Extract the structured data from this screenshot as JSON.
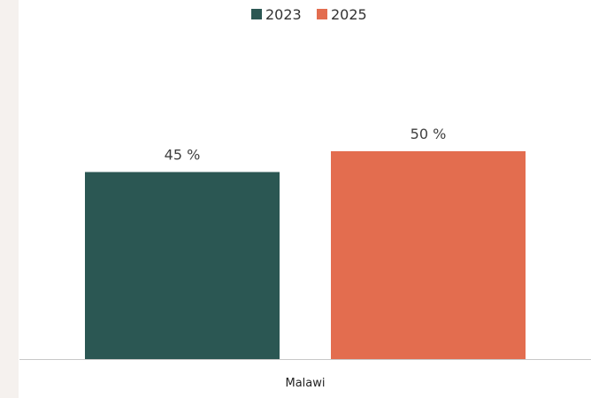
{
  "chart_data": {
    "type": "bar",
    "categories": [
      "Malawi"
    ],
    "series": [
      {
        "name": "2023",
        "values": [
          45
        ],
        "color": "#2b5753"
      },
      {
        "name": "2025",
        "values": [
          50
        ],
        "color": "#e36d4f"
      }
    ],
    "value_suffix": " %",
    "ylim": [
      0,
      80
    ],
    "grid": false,
    "legend": "top-center"
  },
  "colors": {
    "baseline": "#c8c8c8",
    "sidebar": "#f5f1ee"
  }
}
